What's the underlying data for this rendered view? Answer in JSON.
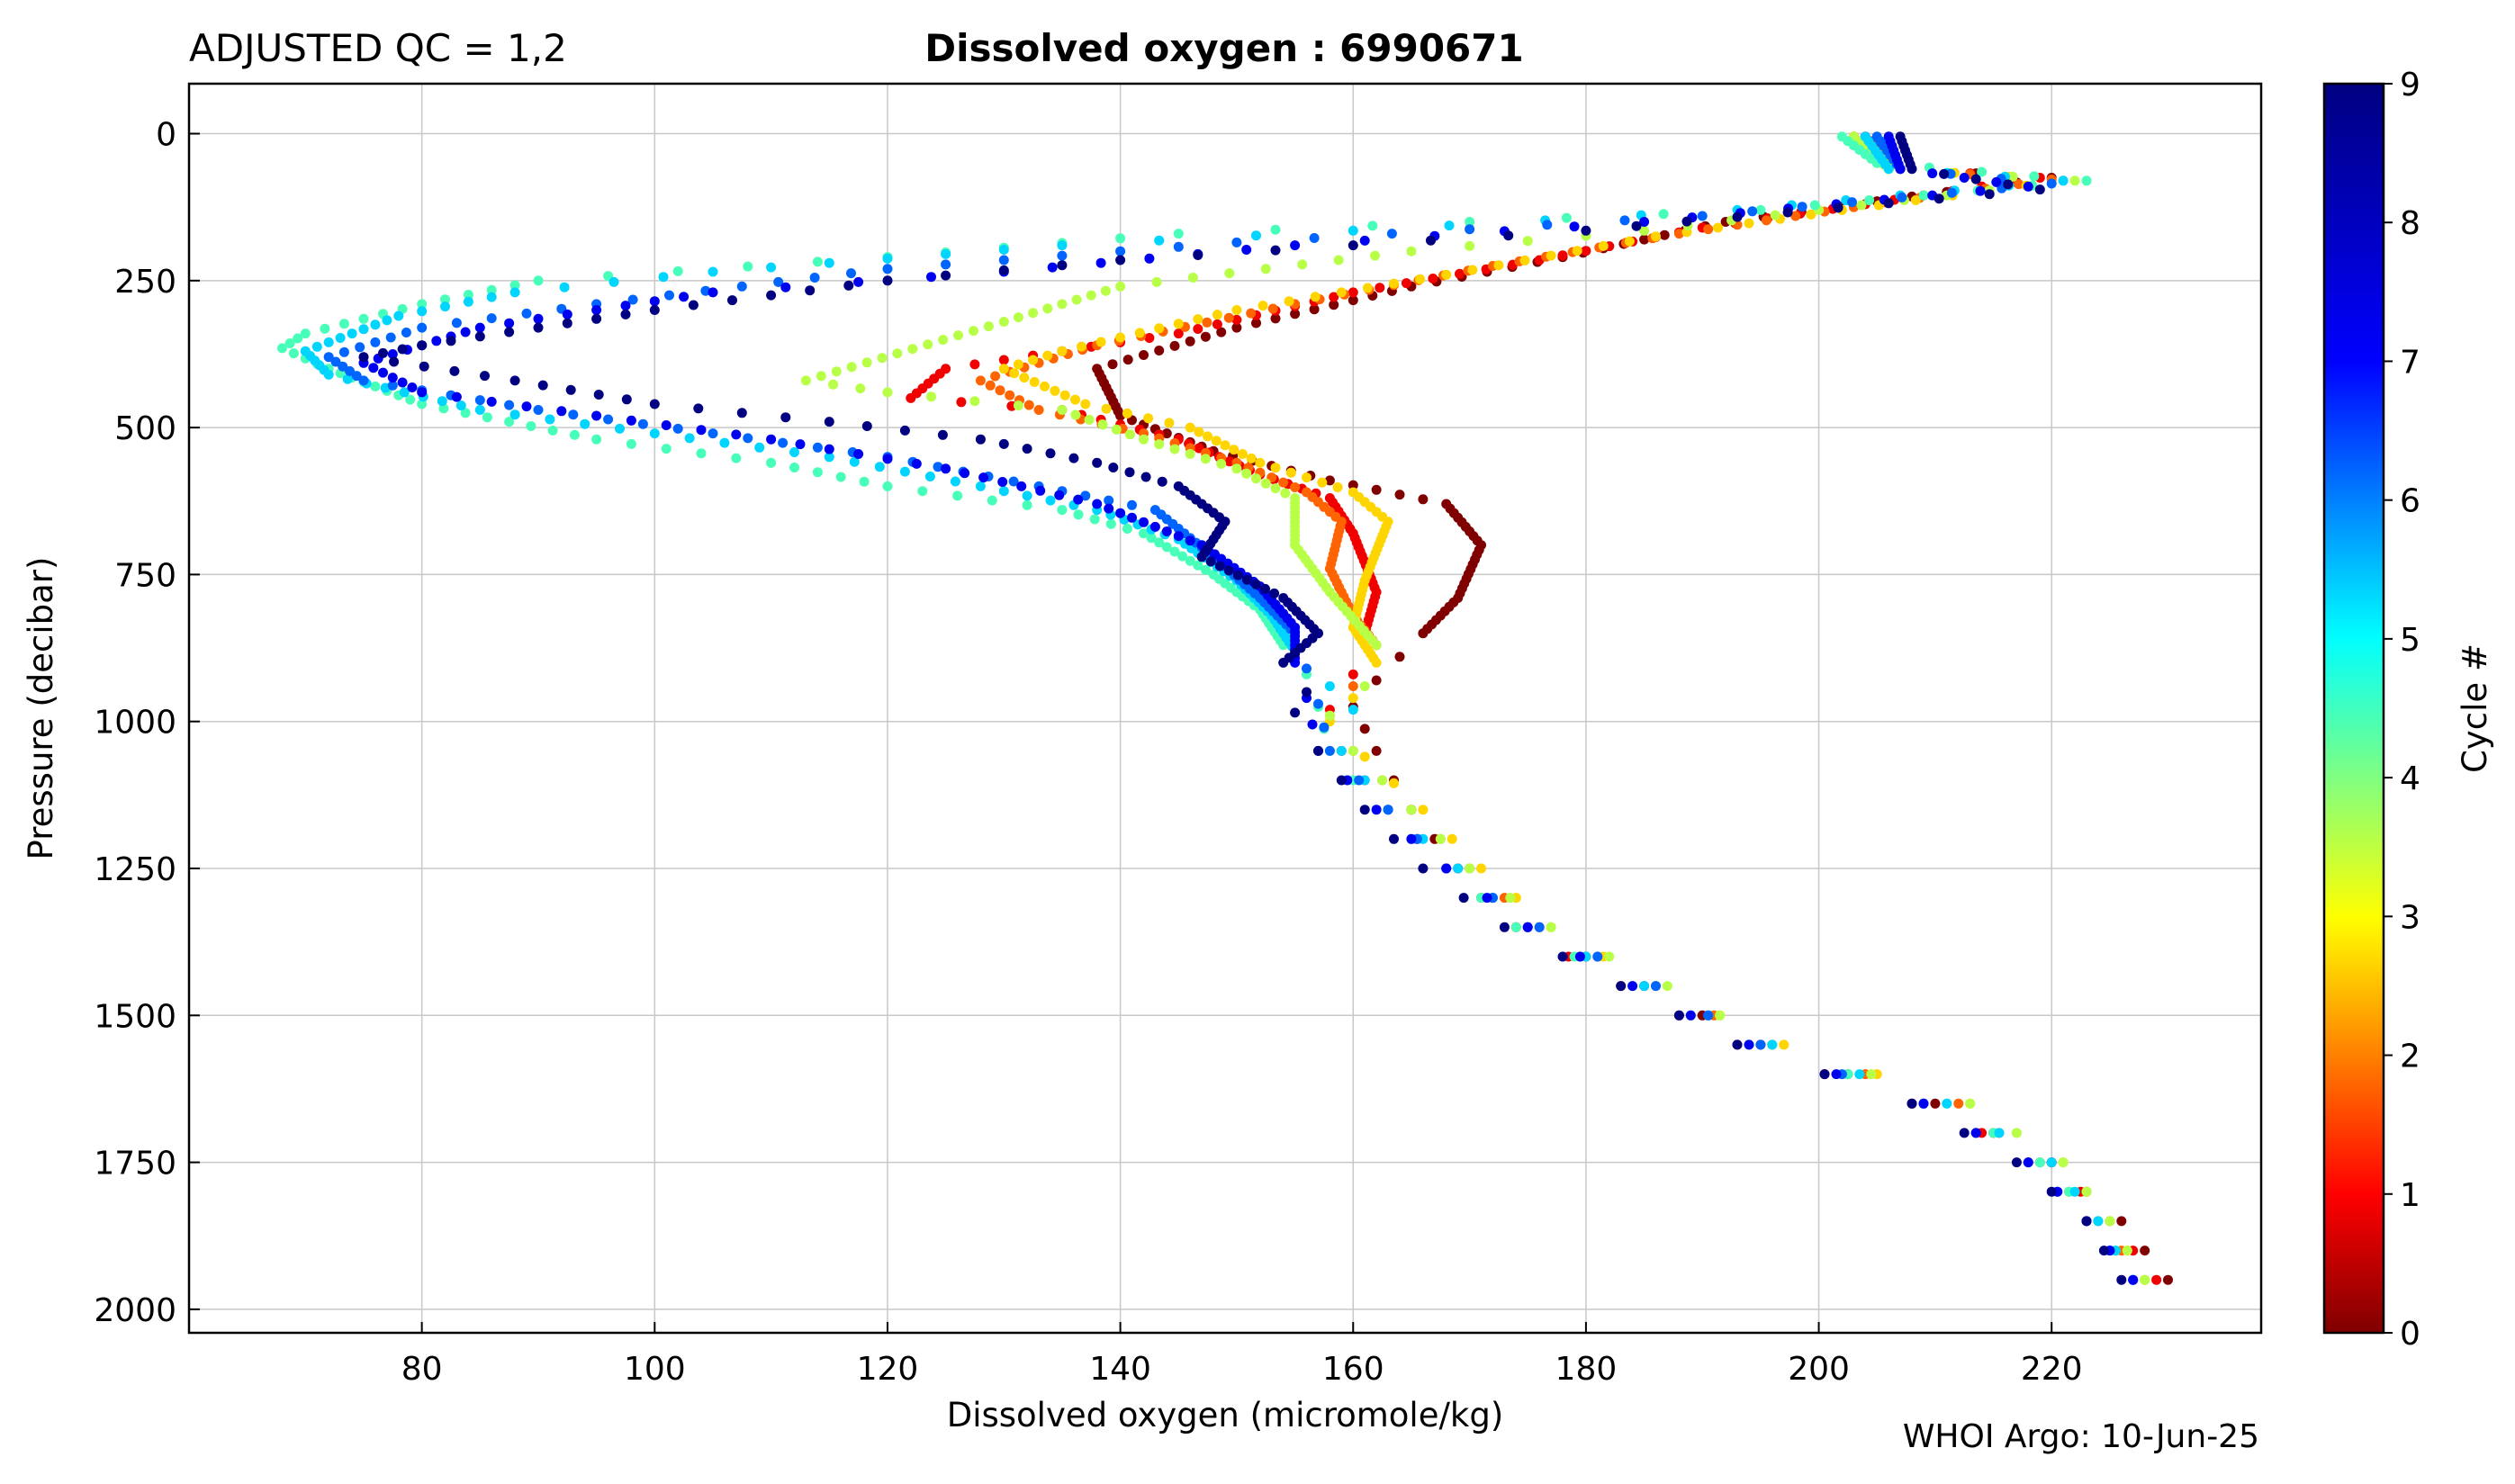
{
  "title_left": "ADJUSTED QC = 1,2",
  "title_main": "Dissolved oxygen : 6990671",
  "credit": "WHOI Argo: 10-Jun-25",
  "chart_data": {
    "type": "scatter",
    "title": "Dissolved oxygen : 6990671",
    "xlabel": "Dissolved oxygen  (micromole/kg)",
    "ylabel": "Pressure  (decibar)",
    "xlim": [
      60,
      238
    ],
    "ylim": [
      2040,
      -85
    ],
    "y_inverted": true,
    "grid": true,
    "x_ticks": [
      80,
      100,
      120,
      140,
      160,
      180,
      200,
      220
    ],
    "y_ticks": [
      0,
      250,
      500,
      750,
      1000,
      1250,
      1500,
      1750,
      2000
    ],
    "colorbar": {
      "label": "Cycle #",
      "range": [
        0,
        9
      ],
      "ticks": [
        0,
        1,
        2,
        3,
        4,
        5,
        6,
        7,
        8,
        9
      ],
      "colormap": "jet",
      "stops": [
        "#800000",
        "#ff0000",
        "#ff8000",
        "#ffff00",
        "#80ff80",
        "#00ffff",
        "#0080ff",
        "#0000ff",
        "#000080"
      ]
    },
    "series": [
      {
        "cycle": 0,
        "points": [
          [
            203,
            5
          ],
          [
            207,
            60
          ],
          [
            220,
            75
          ],
          [
            205,
            115
          ],
          [
            192,
            150
          ],
          [
            178,
            210
          ],
          [
            165,
            260
          ],
          [
            150,
            330
          ],
          [
            138,
            400
          ],
          [
            140,
            480
          ],
          [
            148,
            540
          ],
          [
            158,
            590
          ],
          [
            168,
            630
          ],
          [
            171,
            700
          ],
          [
            169,
            790
          ],
          [
            166,
            850
          ],
          [
            162,
            930
          ],
          [
            160,
            975
          ],
          [
            162,
            1050
          ],
          [
            165,
            1150
          ],
          [
            169,
            1250
          ],
          [
            175,
            1350
          ],
          [
            185,
            1450
          ],
          [
            195,
            1550
          ],
          [
            210,
            1650
          ],
          [
            220,
            1750
          ],
          [
            226,
            1850
          ],
          [
            230,
            1950
          ]
        ]
      },
      {
        "cycle": 1,
        "points": [
          [
            204,
            5
          ],
          [
            207,
            60
          ],
          [
            219,
            75
          ],
          [
            204,
            120
          ],
          [
            190,
            160
          ],
          [
            176,
            215
          ],
          [
            160,
            270
          ],
          [
            145,
            340
          ],
          [
            125,
            400
          ],
          [
            122,
            450
          ],
          [
            135,
            470
          ],
          [
            145,
            520
          ],
          [
            152,
            580
          ],
          [
            158,
            620
          ],
          [
            160,
            680
          ],
          [
            162,
            780
          ],
          [
            161,
            850
          ],
          [
            160,
            920
          ],
          [
            158,
            980
          ],
          [
            159,
            1050
          ],
          [
            163,
            1150
          ],
          [
            168,
            1250
          ],
          [
            174,
            1350
          ],
          [
            183,
            1450
          ],
          [
            193,
            1550
          ],
          [
            208,
            1650
          ],
          [
            220,
            1750
          ],
          [
            225,
            1850
          ],
          [
            229,
            1950
          ]
        ]
      },
      {
        "cycle": 2,
        "points": [
          [
            203,
            5
          ],
          [
            206,
            60
          ],
          [
            220,
            78
          ],
          [
            203,
            125
          ],
          [
            188,
            170
          ],
          [
            172,
            225
          ],
          [
            155,
            290
          ],
          [
            138,
            360
          ],
          [
            128,
            420
          ],
          [
            133,
            470
          ],
          [
            142,
            510
          ],
          [
            150,
            560
          ],
          [
            156,
            610
          ],
          [
            159,
            660
          ],
          [
            158,
            740
          ],
          [
            160,
            820
          ],
          [
            162,
            870
          ],
          [
            160,
            940
          ],
          [
            158,
            990
          ],
          [
            160,
            1050
          ],
          [
            165,
            1150
          ],
          [
            170,
            1250
          ],
          [
            176,
            1350
          ],
          [
            186,
            1450
          ],
          [
            196,
            1550
          ],
          [
            212,
            1650
          ],
          [
            219,
            1750
          ],
          [
            224,
            1850
          ],
          [
            228,
            1950
          ]
        ]
      },
      {
        "cycle": 3,
        "points": [
          [
            203,
            5
          ],
          [
            207,
            60
          ],
          [
            221,
            80
          ],
          [
            202,
            130
          ],
          [
            186,
            175
          ],
          [
            168,
            240
          ],
          [
            150,
            300
          ],
          [
            135,
            370
          ],
          [
            130,
            400
          ],
          [
            137,
            460
          ],
          [
            146,
            500
          ],
          [
            152,
            560
          ],
          [
            160,
            610
          ],
          [
            163,
            660
          ],
          [
            161,
            760
          ],
          [
            160,
            840
          ],
          [
            162,
            900
          ],
          [
            160,
            960
          ],
          [
            158,
            1000
          ],
          [
            161,
            1060
          ],
          [
            166,
            1150
          ],
          [
            171,
            1250
          ],
          [
            177,
            1350
          ],
          [
            186,
            1450
          ],
          [
            197,
            1550
          ],
          [
            213,
            1650
          ],
          [
            221,
            1750
          ],
          [
            225,
            1850
          ],
          [
            228,
            1950
          ]
        ]
      },
      {
        "cycle": 4,
        "points": [
          [
            203,
            5
          ],
          [
            206,
            60
          ],
          [
            222,
            80
          ],
          [
            200,
            130
          ],
          [
            185,
            165
          ],
          [
            165,
            200
          ],
          [
            140,
            260
          ],
          [
            130,
            320
          ],
          [
            113,
            420
          ],
          [
            120,
            440
          ],
          [
            135,
            470
          ],
          [
            142,
            520
          ],
          [
            150,
            570
          ],
          [
            155,
            620
          ],
          [
            155,
            700
          ],
          [
            158,
            780
          ],
          [
            162,
            870
          ],
          [
            161,
            940
          ],
          [
            158,
            990
          ],
          [
            160,
            1050
          ],
          [
            165,
            1150
          ],
          [
            170,
            1250
          ],
          [
            177,
            1350
          ],
          [
            187,
            1450
          ],
          [
            196,
            1550
          ],
          [
            213,
            1650
          ],
          [
            221,
            1750
          ],
          [
            225,
            1850
          ],
          [
            228,
            1950
          ]
        ]
      },
      {
        "cycle": 5,
        "points": [
          [
            202,
            5
          ],
          [
            205,
            50
          ],
          [
            223,
            80
          ],
          [
            195,
            130
          ],
          [
            170,
            150
          ],
          [
            145,
            170
          ],
          [
            120,
            210
          ],
          [
            90,
            250
          ],
          [
            80,
            290
          ],
          [
            70,
            340
          ],
          [
            68,
            365
          ],
          [
            72,
            400
          ],
          [
            80,
            460
          ],
          [
            95,
            520
          ],
          [
            110,
            560
          ],
          [
            120,
            600
          ],
          [
            135,
            640
          ],
          [
            142,
            680
          ],
          [
            148,
            750
          ],
          [
            152,
            810
          ],
          [
            154,
            870
          ],
          [
            156,
            920
          ],
          [
            157,
            975
          ],
          [
            158,
            1050
          ],
          [
            162,
            1150
          ],
          [
            168,
            1250
          ],
          [
            174,
            1350
          ],
          [
            184,
            1450
          ],
          [
            194,
            1550
          ],
          [
            211,
            1650
          ],
          [
            219,
            1750
          ],
          [
            224,
            1850
          ],
          [
            227,
            1950
          ]
        ]
      },
      {
        "cycle": 6,
        "points": [
          [
            204,
            5
          ],
          [
            206,
            60
          ],
          [
            221,
            80
          ],
          [
            193,
            130
          ],
          [
            160,
            165
          ],
          [
            135,
            190
          ],
          [
            105,
            235
          ],
          [
            88,
            270
          ],
          [
            78,
            310
          ],
          [
            70,
            370
          ],
          [
            72,
            410
          ],
          [
            85,
            470
          ],
          [
            100,
            510
          ],
          [
            115,
            550
          ],
          [
            128,
            600
          ],
          [
            138,
            640
          ],
          [
            145,
            690
          ],
          [
            150,
            760
          ],
          [
            153,
            820
          ],
          [
            155,
            880
          ],
          [
            158,
            940
          ],
          [
            160,
            980
          ],
          [
            159,
            1050
          ],
          [
            163,
            1150
          ],
          [
            169,
            1250
          ],
          [
            175,
            1350
          ],
          [
            185,
            1450
          ],
          [
            196,
            1550
          ],
          [
            211,
            1650
          ],
          [
            220,
            1750
          ],
          [
            224,
            1850
          ],
          [
            227,
            1950
          ]
        ]
      },
      {
        "cycle": 7,
        "points": [
          [
            205,
            5
          ],
          [
            207,
            60
          ],
          [
            220,
            85
          ],
          [
            190,
            140
          ],
          [
            150,
            185
          ],
          [
            120,
            230
          ],
          [
            95,
            290
          ],
          [
            80,
            330
          ],
          [
            72,
            380
          ],
          [
            75,
            420
          ],
          [
            90,
            470
          ],
          [
            105,
            510
          ],
          [
            120,
            550
          ],
          [
            133,
            600
          ],
          [
            143,
            640
          ],
          [
            148,
            720
          ],
          [
            152,
            790
          ],
          [
            155,
            850
          ],
          [
            156,
            910
          ],
          [
            157,
            970
          ],
          [
            158,
            1050
          ],
          [
            163,
            1150
          ],
          [
            168,
            1250
          ],
          [
            176,
            1350
          ],
          [
            186,
            1450
          ],
          [
            195,
            1550
          ],
          [
            209,
            1650
          ],
          [
            218,
            1750
          ],
          [
            223,
            1850
          ],
          [
            227,
            1950
          ]
        ]
      },
      {
        "cycle": 8,
        "points": [
          [
            206,
            5
          ],
          [
            207,
            60
          ],
          [
            218,
            90
          ],
          [
            185,
            150
          ],
          [
            155,
            190
          ],
          [
            130,
            235
          ],
          [
            105,
            270
          ],
          [
            85,
            330
          ],
          [
            75,
            390
          ],
          [
            80,
            440
          ],
          [
            95,
            480
          ],
          [
            110,
            520
          ],
          [
            125,
            570
          ],
          [
            138,
            630
          ],
          [
            147,
            700
          ],
          [
            152,
            770
          ],
          [
            155,
            840
          ],
          [
            155,
            900
          ],
          [
            156,
            960
          ],
          [
            157,
            1050
          ],
          [
            162,
            1150
          ],
          [
            168,
            1250
          ],
          [
            175,
            1350
          ],
          [
            184,
            1450
          ],
          [
            194,
            1550
          ],
          [
            209,
            1650
          ],
          [
            218,
            1750
          ],
          [
            223,
            1850
          ],
          [
            227,
            1950
          ]
        ]
      },
      {
        "cycle": 9,
        "points": [
          [
            207,
            5
          ],
          [
            208,
            60
          ],
          [
            219,
            95
          ],
          [
            180,
            165
          ],
          [
            140,
            215
          ],
          [
            120,
            250
          ],
          [
            100,
            300
          ],
          [
            80,
            360
          ],
          [
            75,
            380
          ],
          [
            88,
            420
          ],
          [
            100,
            460
          ],
          [
            115,
            490
          ],
          [
            128,
            520
          ],
          [
            138,
            560
          ],
          [
            145,
            600
          ],
          [
            149,
            660
          ],
          [
            147,
            720
          ],
          [
            154,
            790
          ],
          [
            157,
            850
          ],
          [
            154,
            900
          ],
          [
            156,
            950
          ],
          [
            155,
            985
          ],
          [
            157,
            1050
          ],
          [
            161,
            1150
          ],
          [
            166,
            1250
          ],
          [
            173,
            1350
          ],
          [
            183,
            1450
          ],
          [
            193,
            1550
          ],
          [
            208,
            1650
          ],
          [
            217,
            1750
          ],
          [
            223,
            1850
          ],
          [
            226,
            1950
          ]
        ]
      }
    ]
  }
}
